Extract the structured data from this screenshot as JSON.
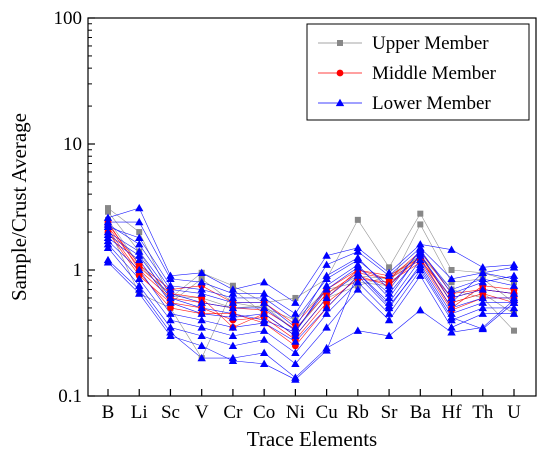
{
  "chart_data": {
    "type": "line",
    "xlabel": "Trace Elements",
    "ylabel": "Sample/Crust Average",
    "yscale": "log",
    "ylim": [
      0.1,
      100
    ],
    "yticks": [
      "0.1",
      "1",
      "10",
      "100"
    ],
    "categories": [
      "B",
      "Li",
      "Sc",
      "V",
      "Cr",
      "Co",
      "Ni",
      "Cu",
      "Rb",
      "Sr",
      "Ba",
      "Hf",
      "Th",
      "U"
    ],
    "grid": false,
    "legend": {
      "position": "top-right",
      "entries": [
        "Upper Member",
        "Middle Member",
        "Lower Member"
      ]
    },
    "series": [
      {
        "name": "Upper Member",
        "color": "#888888",
        "marker": "square",
        "values": [
          3.1,
          2.0,
          0.6,
          0.95,
          0.75,
          0.55,
          0.6,
          0.85,
          2.5,
          1.05,
          2.8,
          1.0,
          0.95,
          0.8
        ]
      },
      {
        "name": "Upper Member",
        "color": "#888888",
        "marker": "square",
        "values": [
          2.9,
          1.4,
          0.55,
          0.85,
          0.55,
          0.5,
          0.4,
          0.7,
          0.8,
          0.75,
          2.3,
          0.8,
          0.85,
          0.55
        ]
      },
      {
        "name": "Upper Member",
        "color": "#888888",
        "marker": "square",
        "values": [
          2.2,
          0.65,
          0.5,
          0.2,
          0.7,
          0.45,
          0.3,
          0.6,
          0.75,
          0.9,
          1.3,
          0.7,
          0.6,
          0.33
        ]
      },
      {
        "name": "Upper Member",
        "color": "#888888",
        "marker": "square",
        "values": [
          2.5,
          1.1,
          0.62,
          0.6,
          0.5,
          0.52,
          0.33,
          0.65,
          0.9,
          0.85,
          1.3,
          0.55,
          0.65,
          0.45
        ]
      },
      {
        "name": "Middle Member",
        "color": "#ff0000",
        "marker": "circle",
        "values": [
          2.4,
          1.0,
          0.6,
          0.55,
          0.5,
          0.48,
          0.34,
          0.65,
          0.95,
          0.85,
          1.4,
          0.65,
          0.7,
          0.65
        ]
      },
      {
        "name": "Middle Member",
        "color": "#ff0000",
        "marker": "circle",
        "values": [
          2.3,
          1.1,
          0.7,
          0.75,
          0.55,
          0.55,
          0.37,
          0.7,
          1.0,
          0.9,
          1.25,
          0.5,
          0.75,
          0.7
        ]
      },
      {
        "name": "Middle Member",
        "color": "#ff0000",
        "marker": "circle",
        "values": [
          2.0,
          0.9,
          0.55,
          0.5,
          0.4,
          0.42,
          0.28,
          0.55,
          0.85,
          0.8,
          1.15,
          0.48,
          0.6,
          0.6
        ]
      },
      {
        "name": "Middle Member",
        "color": "#ff0000",
        "marker": "circle",
        "values": [
          2.1,
          0.95,
          0.5,
          0.45,
          0.45,
          0.38,
          0.25,
          0.5,
          0.9,
          0.75,
          1.3,
          0.55,
          0.65,
          0.55
        ]
      },
      {
        "name": "Middle Member",
        "color": "#ff0000",
        "marker": "circle",
        "values": [
          2.2,
          1.05,
          0.65,
          0.6,
          0.35,
          0.45,
          0.3,
          0.6,
          1.0,
          0.85,
          1.2,
          0.6,
          0.7,
          0.65
        ]
      },
      {
        "name": "Lower Member",
        "color": "#0000ff",
        "marker": "triangle",
        "values": [
          2.6,
          3.1,
          0.9,
          0.95,
          0.7,
          0.8,
          0.55,
          1.3,
          1.5,
          0.95,
          1.6,
          1.45,
          1.05,
          1.1
        ]
      },
      {
        "name": "Lower Member",
        "color": "#0000ff",
        "marker": "triangle",
        "values": [
          2.4,
          2.4,
          0.85,
          0.8,
          0.65,
          0.65,
          0.45,
          1.1,
          1.4,
          0.9,
          1.5,
          0.85,
          0.95,
          0.85
        ]
      },
      {
        "name": "Lower Member",
        "color": "#0000ff",
        "marker": "triangle",
        "values": [
          2.2,
          1.8,
          0.75,
          0.7,
          0.6,
          0.6,
          0.4,
          0.85,
          1.2,
          0.75,
          1.4,
          0.7,
          0.85,
          0.75
        ]
      },
      {
        "name": "Lower Member",
        "color": "#0000ff",
        "marker": "triangle",
        "values": [
          2.0,
          1.4,
          0.65,
          0.55,
          0.5,
          0.5,
          0.33,
          0.7,
          1.05,
          0.65,
          1.3,
          0.6,
          0.7,
          0.65
        ]
      },
      {
        "name": "Lower Member",
        "color": "#0000ff",
        "marker": "triangle",
        "values": [
          1.8,
          1.2,
          0.55,
          0.45,
          0.42,
          0.45,
          0.3,
          0.6,
          0.95,
          0.55,
          1.2,
          0.5,
          0.6,
          0.6
        ]
      },
      {
        "name": "Lower Member",
        "color": "#0000ff",
        "marker": "triangle",
        "values": [
          1.7,
          1.0,
          0.45,
          0.4,
          0.35,
          0.38,
          0.27,
          0.5,
          0.9,
          0.5,
          1.1,
          0.45,
          0.55,
          0.55
        ]
      },
      {
        "name": "Lower Member",
        "color": "#0000ff",
        "marker": "triangle",
        "values": [
          1.6,
          0.85,
          0.4,
          0.35,
          0.3,
          0.33,
          0.22,
          0.45,
          0.8,
          0.45,
          1.0,
          0.4,
          0.5,
          0.5
        ]
      },
      {
        "name": "Lower Member",
        "color": "#0000ff",
        "marker": "triangle",
        "values": [
          1.5,
          0.75,
          0.35,
          0.3,
          0.25,
          0.28,
          0.18,
          0.35,
          0.7,
          0.4,
          0.9,
          0.35,
          0.45,
          0.45
        ]
      },
      {
        "name": "Lower Member",
        "color": "#0000ff",
        "marker": "triangle",
        "values": [
          1.2,
          0.7,
          0.32,
          0.2,
          0.2,
          0.22,
          0.14,
          0.24,
          0.33,
          0.3,
          0.48,
          0.32,
          0.35,
          0.58
        ]
      },
      {
        "name": "Lower Member",
        "color": "#0000ff",
        "marker": "triangle",
        "values": [
          1.15,
          0.65,
          0.3,
          0.25,
          0.19,
          0.18,
          0.135,
          0.23,
          0.95,
          0.52,
          1.05,
          0.42,
          0.34,
          0.55
        ]
      },
      {
        "name": "Lower Member",
        "color": "#0000ff",
        "marker": "triangle",
        "values": [
          1.9,
          1.3,
          0.6,
          0.5,
          0.45,
          0.4,
          0.32,
          0.75,
          1.1,
          0.6,
          1.35,
          0.55,
          0.95,
          1.05
        ]
      },
      {
        "name": "Lower Member",
        "color": "#0000ff",
        "marker": "triangle",
        "values": [
          2.3,
          1.6,
          0.7,
          0.65,
          0.55,
          0.55,
          0.35,
          0.9,
          1.25,
          0.7,
          1.45,
          0.65,
          0.8,
          0.9
        ]
      }
    ]
  }
}
